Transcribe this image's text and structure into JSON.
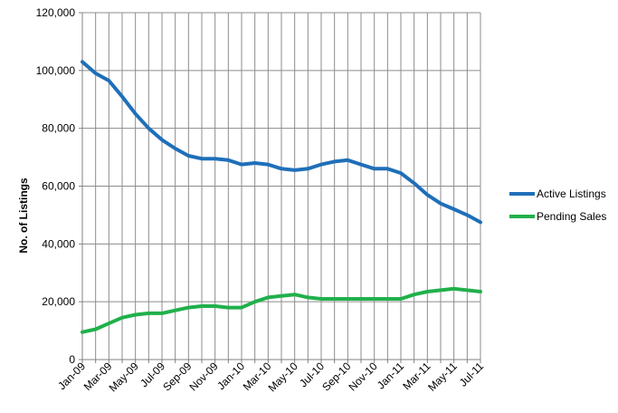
{
  "chart_data": {
    "type": "line",
    "title": "",
    "xlabel": "",
    "ylabel": "No. of Listings",
    "ylim": [
      0,
      120000
    ],
    "yticks": [
      0,
      20000,
      40000,
      60000,
      80000,
      100000,
      120000
    ],
    "ytick_labels": [
      "0",
      "20,000",
      "40,000",
      "60,000",
      "80,000",
      "100,000",
      "120,000"
    ],
    "x_labels": [
      "Jan-09",
      "Mar-09",
      "May-09",
      "Jul-09",
      "Sep-09",
      "Nov-09",
      "Jan-10",
      "Mar-10",
      "May-10",
      "Jul-10",
      "Sep-10",
      "Nov-10",
      "Jan-11",
      "Mar-11",
      "May-11",
      "Jul-11"
    ],
    "x": [
      "2009-01",
      "2009-02",
      "2009-03",
      "2009-04",
      "2009-05",
      "2009-06",
      "2009-07",
      "2009-08",
      "2009-09",
      "2009-10",
      "2009-11",
      "2009-12",
      "2010-01",
      "2010-02",
      "2010-03",
      "2010-04",
      "2010-05",
      "2010-06",
      "2010-07",
      "2010-08",
      "2010-09",
      "2010-10",
      "2010-11",
      "2010-12",
      "2011-01",
      "2011-02",
      "2011-03",
      "2011-04",
      "2011-05",
      "2011-06",
      "2011-07"
    ],
    "grid": true,
    "legend": "right",
    "series": [
      {
        "name": "Active Listings",
        "color": "#1f6fb9",
        "values": [
          103000,
          99000,
          96500,
          91000,
          85000,
          80000,
          76000,
          73000,
          70500,
          69500,
          69500,
          69000,
          67500,
          68000,
          67500,
          66000,
          65500,
          66000,
          67500,
          68500,
          69000,
          67500,
          66000,
          66000,
          64500,
          61000,
          57000,
          54000,
          52000,
          50000,
          47500
        ]
      },
      {
        "name": "Pending Sales",
        "color": "#21b04b",
        "values": [
          9500,
          10500,
          12500,
          14500,
          15500,
          16000,
          16000,
          17000,
          18000,
          18500,
          18500,
          18000,
          18000,
          20000,
          21500,
          22000,
          22500,
          21500,
          21000,
          21000,
          21000,
          21000,
          21000,
          21000,
          21000,
          22500,
          23500,
          24000,
          24500,
          24000,
          23500
        ]
      }
    ]
  }
}
